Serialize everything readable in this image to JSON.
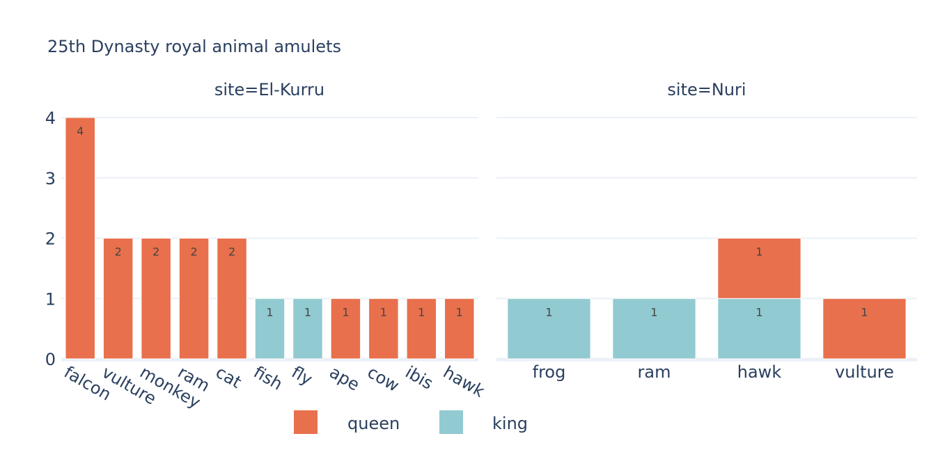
{
  "chart_data": {
    "type": "bar",
    "title": "25th Dynasty royal animal amulets",
    "ylim": [
      0,
      4
    ],
    "yticks": [
      0,
      1,
      2,
      3,
      4
    ],
    "stacked": true,
    "legend": {
      "placement": "bottom-center",
      "entries": [
        {
          "name": "queen",
          "color": "#E8704C"
        },
        {
          "name": "king",
          "color": "#92CAD1"
        }
      ]
    },
    "facets": [
      {
        "title": "site=El-Kurru",
        "categories": [
          "falcon",
          "vulture",
          "monkey",
          "ram",
          "cat",
          "fish",
          "fly",
          "ape",
          "cow",
          "ibis",
          "hawk"
        ],
        "tick_labels": [
          "falcon",
          "vulture",
          "monkey",
          "ram",
          "cat",
          "fish",
          "fly",
          "ape",
          "cow",
          "ibis",
          "hawk"
        ],
        "series": [
          {
            "name": "queen",
            "values": [
              4,
              2,
              2,
              2,
              2,
              0,
              0,
              1,
              1,
              1,
              1
            ]
          },
          {
            "name": "king",
            "values": [
              0,
              0,
              0,
              0,
              0,
              1,
              1,
              0,
              0,
              0,
              0
            ]
          }
        ]
      },
      {
        "title": "site=Nuri",
        "categories": [
          "frog",
          "ram",
          "hawk",
          "vulture"
        ],
        "tick_labels": [
          "frog",
          "ram",
          "hawk",
          "vulture"
        ],
        "series": [
          {
            "name": "king",
            "values": [
              1,
              1,
              1,
              0
            ]
          },
          {
            "name": "queen",
            "values": [
              0,
              0,
              1,
              1
            ]
          }
        ]
      }
    ]
  }
}
